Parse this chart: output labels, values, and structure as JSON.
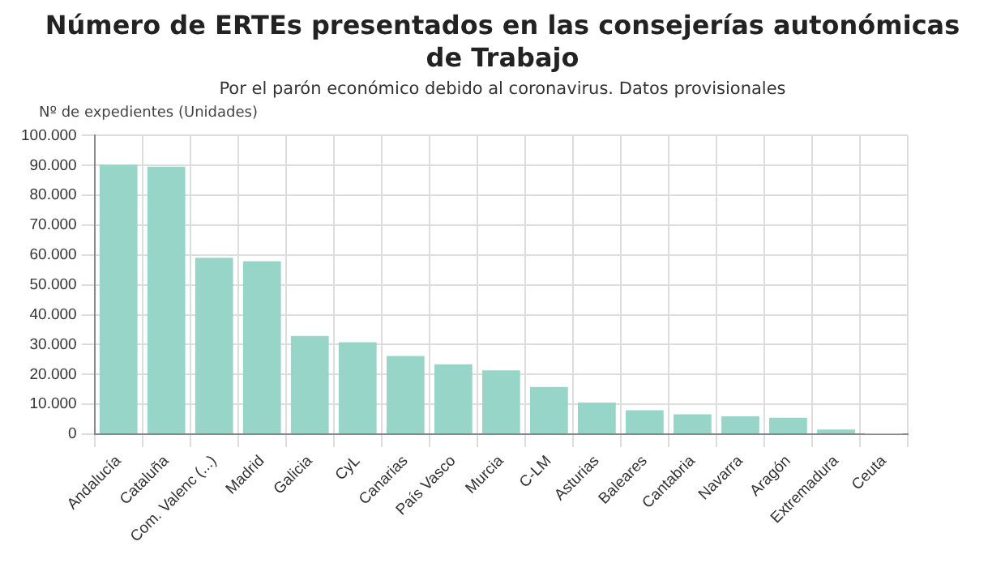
{
  "chart_data": {
    "type": "bar",
    "title": "Número de ERTEs presentados en las consejerías autonómicas de Trabajo",
    "subtitle": "Por el parón económico debido al coronavirus. Datos provisionales",
    "ylabel": "Nº de expedientes (Unidades)",
    "categories": [
      "Andalucía",
      "Cataluña",
      "Com. Valenc (...)",
      "Madrid",
      "Galicia",
      "CyL",
      "Canarias",
      "País Vasco",
      "Murcia",
      "C-LM",
      "Asturias",
      "Baleares",
      "Cantabria",
      "Navarra",
      "Aragón",
      "Extremadura",
      "Ceuta"
    ],
    "values": [
      90300,
      89600,
      59100,
      57900,
      32900,
      30800,
      26200,
      23400,
      21400,
      15800,
      10600,
      8000,
      6700,
      6000,
      5500,
      1600,
      100
    ],
    "color": "#98d5c9",
    "ylim": [
      0,
      100000
    ],
    "yticks": [
      {
        "value": 0,
        "label": "0"
      },
      {
        "value": 10000,
        "label": "10.000"
      },
      {
        "value": 20000,
        "label": "20.000"
      },
      {
        "value": 30000,
        "label": "30.000"
      },
      {
        "value": 40000,
        "label": "40.000"
      },
      {
        "value": 50000,
        "label": "50.000"
      },
      {
        "value": 60000,
        "label": "60.000"
      },
      {
        "value": 70000,
        "label": "70.000"
      },
      {
        "value": 80000,
        "label": "80.000"
      },
      {
        "value": 90000,
        "label": "90.000"
      },
      {
        "value": 100000,
        "label": "100.000"
      }
    ],
    "grid": true,
    "legend": false
  }
}
